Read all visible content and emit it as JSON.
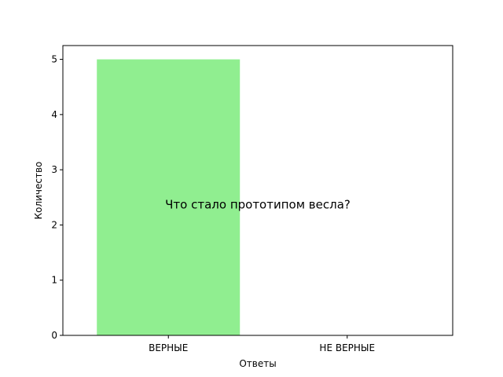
{
  "chart_data": {
    "type": "bar",
    "categories": [
      "ВЕРНЫЕ",
      "НЕ ВЕРНЫЕ"
    ],
    "values": [
      5,
      0
    ],
    "title": "",
    "annotation": "Что стало прототипом весла?",
    "xlabel": "Ответы",
    "ylabel": "Количество",
    "ylim": [
      0,
      5.25
    ],
    "yticks": [
      0,
      1,
      2,
      3,
      4,
      5
    ],
    "grid": false,
    "bar_color": "#90ee90"
  }
}
